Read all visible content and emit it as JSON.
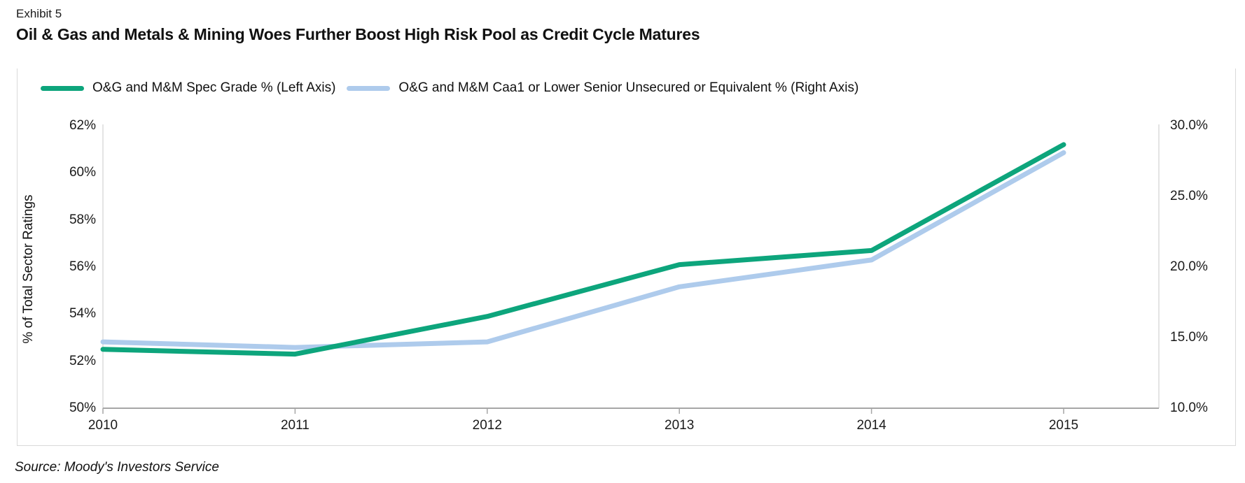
{
  "header": {
    "exhibit": "Exhibit 5",
    "title": "Oil & Gas and Metals & Mining Woes Further Boost High Risk Pool as Credit Cycle Matures"
  },
  "footer": {
    "source": "Source: Moody's Investors Service"
  },
  "colors": {
    "spec_grade_green": "#0DA57C",
    "caa1_blue": "#AECBEC",
    "axis_line": "#A6A6A6",
    "plot_edge_line": "#DCDCDC",
    "frame_border": "#D9D9D9",
    "text": "#1A1A1A"
  },
  "chart_data": {
    "type": "line",
    "title": "Oil & Gas and Metals & Mining Woes Further Boost High Risk Pool as Credit Cycle Matures",
    "x": [
      2010,
      2011,
      2012,
      2013,
      2014,
      2015
    ],
    "series": [
      {
        "key": "spec-grade",
        "name": "O&G and M&M Spec Grade % (Left Axis)",
        "axis": "left",
        "color": "#0DA57C",
        "values": [
          52.5,
          52.3,
          53.9,
          56.1,
          56.7,
          61.2
        ]
      },
      {
        "key": "caa1",
        "name": "O&G and M&M Caa1 or Lower Senior Unsecured or Equivalent % (Right Axis)",
        "axis": "right",
        "color": "#AECBEC",
        "values": [
          14.7,
          14.3,
          14.7,
          18.6,
          20.5,
          28.1
        ]
      }
    ],
    "left_axis": {
      "label": "% of Total Sector Ratings",
      "min": 50,
      "max": 62,
      "ticks": [
        {
          "v": 50,
          "label": "50%"
        },
        {
          "v": 52,
          "label": "52%"
        },
        {
          "v": 54,
          "label": "54%"
        },
        {
          "v": 56,
          "label": "56%"
        },
        {
          "v": 58,
          "label": "58%"
        },
        {
          "v": 60,
          "label": "60%"
        },
        {
          "v": 62,
          "label": "62%"
        }
      ]
    },
    "right_axis": {
      "label": "",
      "min": 10,
      "max": 30,
      "ticks": [
        {
          "v": 10,
          "label": "10.0%"
        },
        {
          "v": 15,
          "label": "15.0%"
        },
        {
          "v": 20,
          "label": "20.0%"
        },
        {
          "v": 25,
          "label": "25.0%"
        },
        {
          "v": 30,
          "label": "30.0%"
        }
      ]
    },
    "legend_position": "top-left",
    "grid": false
  }
}
